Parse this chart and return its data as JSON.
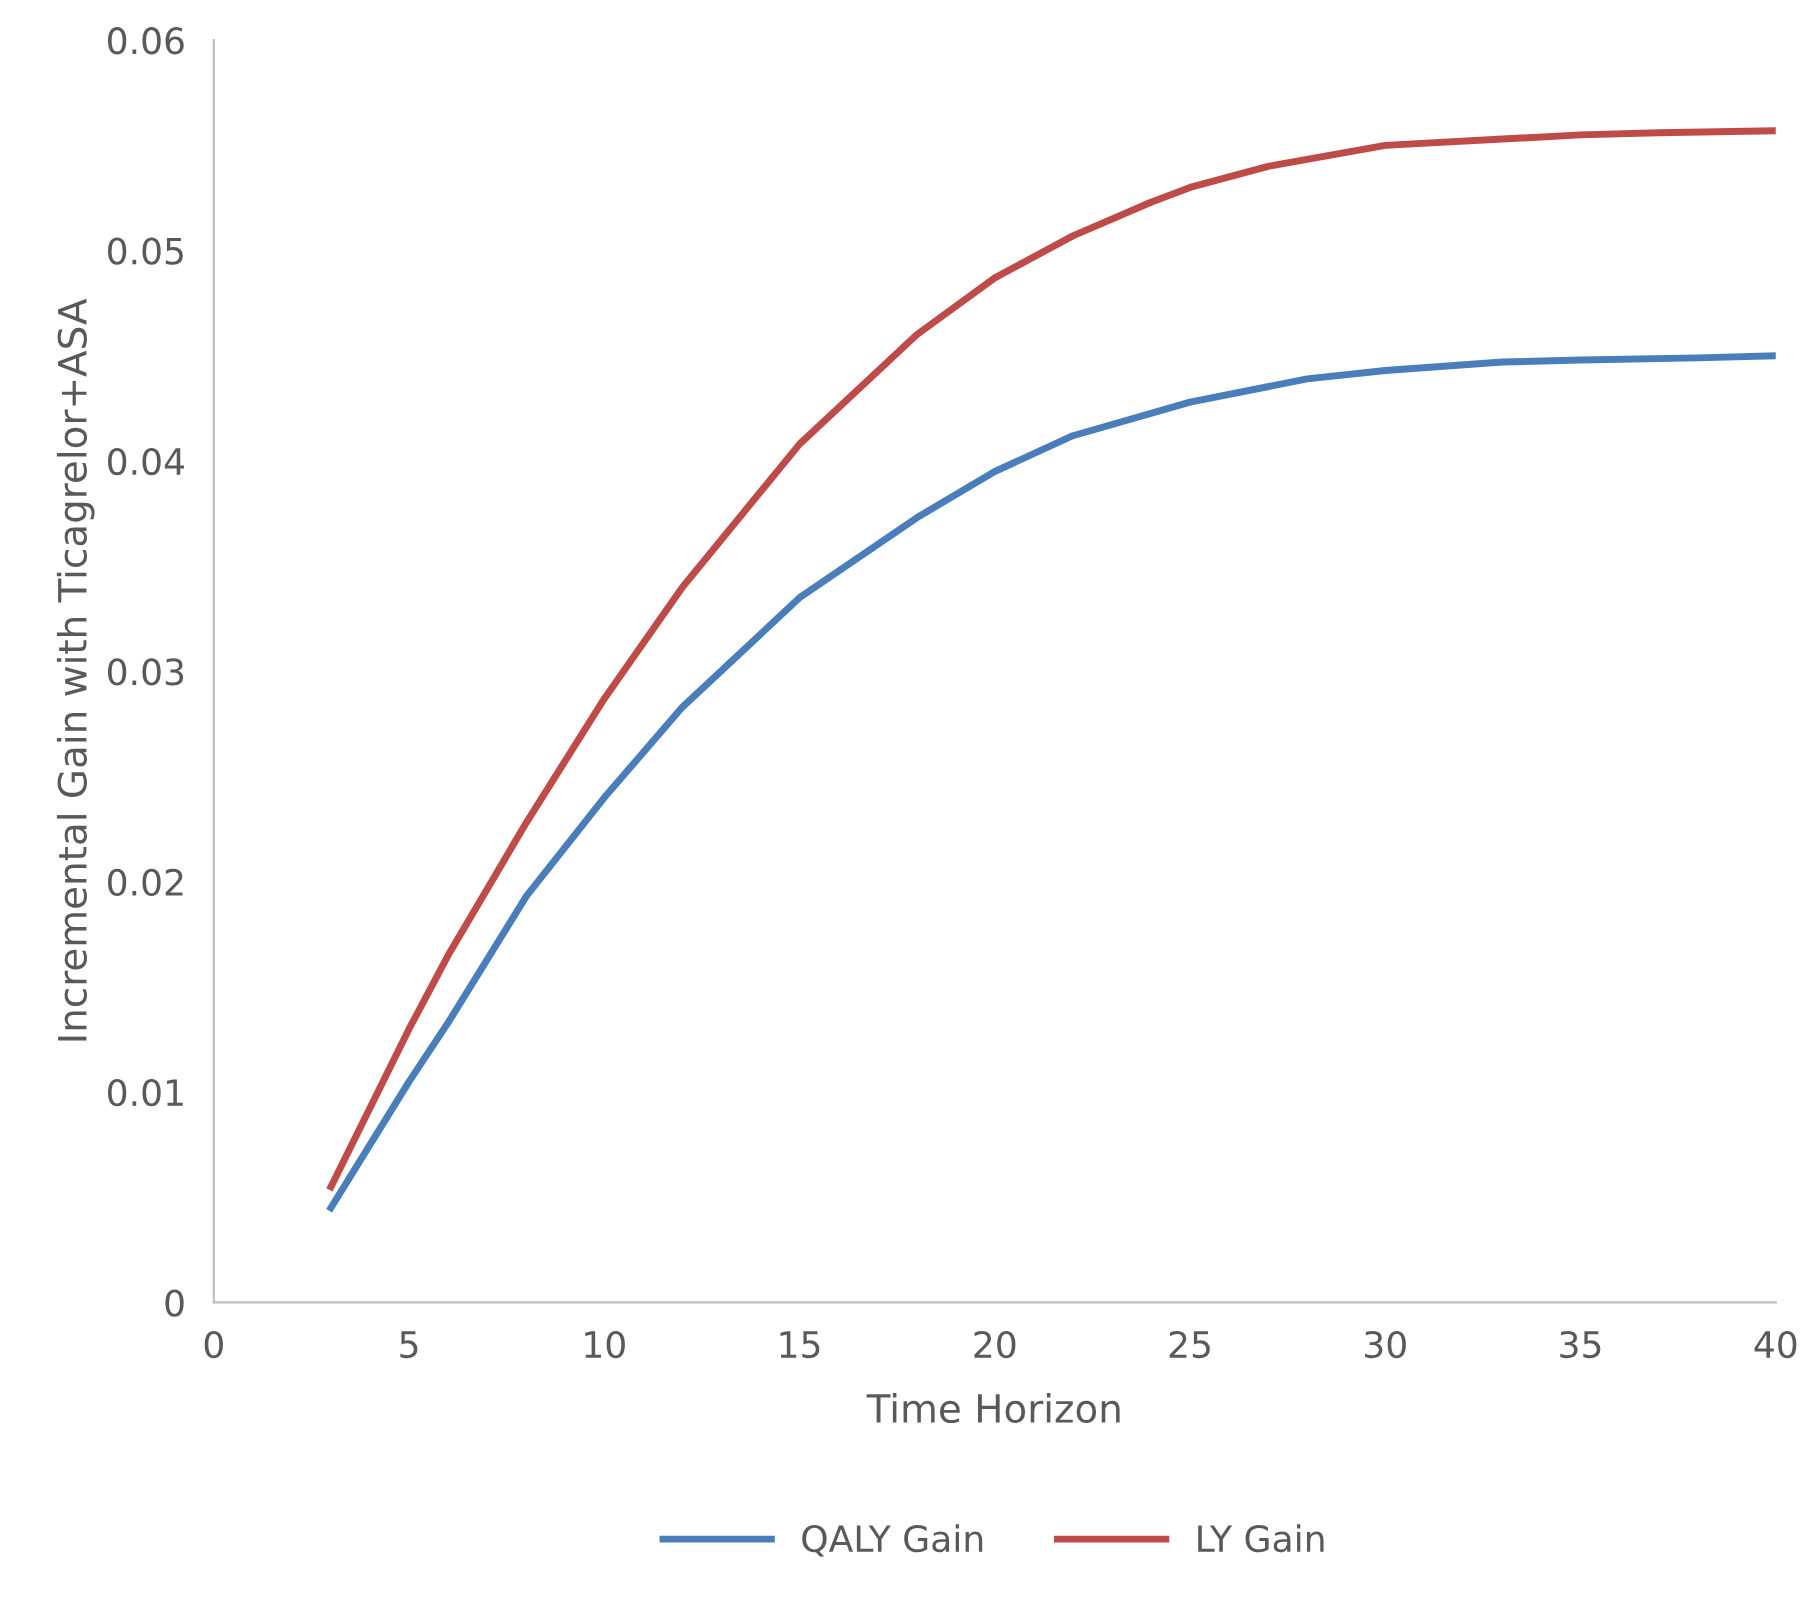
{
  "chart_data": {
    "type": "line",
    "xlabel": "Time Horizon",
    "ylabel": "Incremental Gain with Ticagrelor+ASA",
    "xlim": [
      0,
      40
    ],
    "xticks": [
      0,
      5,
      10,
      15,
      20,
      25,
      30,
      35,
      40
    ],
    "ylim": [
      0,
      0.06
    ],
    "yticks": [
      {
        "value": 0,
        "label": "0"
      },
      {
        "value": 0.01,
        "label": "0.01"
      },
      {
        "value": 0.02,
        "label": "0.02"
      },
      {
        "value": 0.03,
        "label": "0.03"
      },
      {
        "value": 0.04,
        "label": "0.04"
      },
      {
        "value": 0.05,
        "label": "0.05"
      },
      {
        "value": 0.06,
        "label": "0.06"
      }
    ],
    "grid": false,
    "legend": "bottom",
    "marker": "none",
    "line_style": "solid",
    "series": [
      {
        "name": "QALY Gain",
        "color": "#4a7ebb",
        "x": [
          3,
          5,
          6,
          8,
          10,
          12,
          15,
          18,
          20,
          22,
          25,
          28,
          30,
          33,
          35,
          38,
          40
        ],
        "values": [
          0.0045,
          0.0105,
          0.0133,
          0.0193,
          0.024,
          0.0283,
          0.0335,
          0.0373,
          0.0395,
          0.0412,
          0.0428,
          0.0439,
          0.0443,
          0.0447,
          0.0448,
          0.0449,
          0.045
        ]
      },
      {
        "name": "LY Gain",
        "color": "#be4b48",
        "x": [
          3,
          5,
          6,
          8,
          10,
          12,
          15,
          18,
          20,
          22,
          24,
          25,
          27,
          30,
          33,
          35,
          37,
          40
        ],
        "values": [
          0.0055,
          0.013,
          0.0165,
          0.0228,
          0.0287,
          0.034,
          0.0408,
          0.046,
          0.0487,
          0.0507,
          0.0523,
          0.053,
          0.054,
          0.055,
          0.0553,
          0.0555,
          0.0556,
          0.0557
        ]
      }
    ]
  }
}
